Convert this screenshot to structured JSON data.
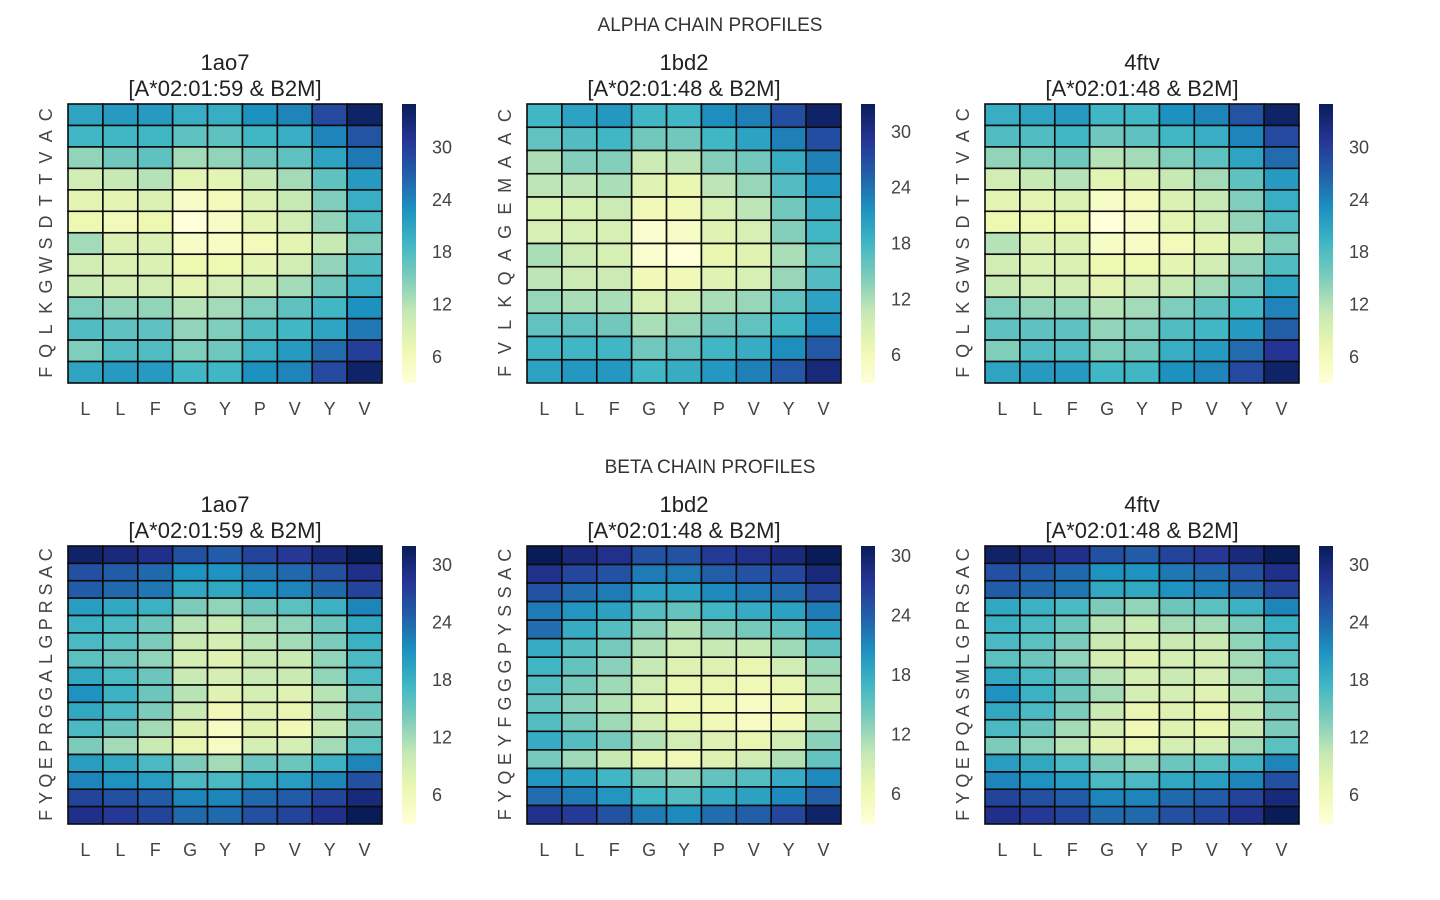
{
  "figure": {
    "rows": [
      {
        "title": "ALPHA CHAIN PROFILES"
      },
      {
        "title": "BETA CHAIN PROFILES"
      }
    ]
  },
  "colormap": [
    "#ffffd9",
    "#edf8b1",
    "#c7e9b4",
    "#7fcdbb",
    "#41b6c4",
    "#1d91c0",
    "#225ea8",
    "#253494",
    "#081d58"
  ],
  "chart_data": [
    {
      "type": "heatmap",
      "row": 0,
      "col": 0,
      "title": "1ao7",
      "subtitle": "[A*02:01:59 & B2M]",
      "x_labels": [
        "L",
        "L",
        "F",
        "G",
        "Y",
        "P",
        "V",
        "Y",
        "V"
      ],
      "y_labels": [
        "F",
        "Q",
        "L",
        "K",
        "G",
        "W",
        "S",
        "D",
        "T",
        "T",
        "V",
        "A",
        "C"
      ],
      "colorbar_ticks": [
        6,
        12,
        18,
        24,
        30
      ],
      "vmin": 3,
      "vmax": 35,
      "values": [
        [
          21,
          22,
          22,
          20,
          20,
          23,
          24,
          29,
          34
        ],
        [
          19,
          19,
          19,
          17,
          17,
          19,
          20,
          24,
          28
        ],
        [
          14,
          16,
          17,
          13,
          14,
          16,
          17,
          21,
          25
        ],
        [
          10,
          11,
          12,
          8,
          8,
          11,
          13,
          17,
          22
        ],
        [
          8,
          8,
          9,
          5,
          6,
          9,
          11,
          15,
          20
        ],
        [
          7,
          6,
          7,
          3,
          5,
          8,
          10,
          14,
          18
        ],
        [
          13,
          9,
          9,
          5,
          5,
          6,
          8,
          11,
          15
        ],
        [
          10,
          9,
          9,
          7,
          7,
          8,
          10,
          14,
          18
        ],
        [
          11,
          10,
          10,
          8,
          10,
          11,
          13,
          16,
          20
        ],
        [
          15,
          14,
          14,
          12,
          13,
          15,
          17,
          19,
          23
        ],
        [
          18,
          17,
          17,
          14,
          15,
          18,
          19,
          21,
          25
        ],
        [
          15,
          18,
          18,
          15,
          16,
          20,
          22,
          26,
          30
        ],
        [
          21,
          22,
          22,
          19,
          19,
          23,
          24,
          29,
          34
        ]
      ]
    },
    {
      "type": "heatmap",
      "row": 0,
      "col": 1,
      "title": "1bd2",
      "subtitle": "[A*02:01:48 & B2M]",
      "x_labels": [
        "L",
        "L",
        "F",
        "G",
        "Y",
        "P",
        "V",
        "Y",
        "V"
      ],
      "y_labels": [
        "F",
        "V",
        "L",
        "K",
        "Q",
        "A",
        "G",
        "E",
        "M",
        "A",
        "A",
        "C"
      ],
      "colorbar_ticks": [
        6,
        12,
        18,
        24,
        30
      ],
      "vmin": 3,
      "vmax": 33,
      "values": [
        [
          18,
          20,
          21,
          18,
          18,
          22,
          23,
          27,
          32
        ],
        [
          16,
          17,
          18,
          15,
          15,
          18,
          20,
          23,
          27
        ],
        [
          12,
          14,
          14,
          10,
          11,
          14,
          15,
          19,
          23
        ],
        [
          11,
          11,
          12,
          8,
          7,
          11,
          13,
          17,
          21
        ],
        [
          9,
          9,
          10,
          6,
          6,
          9,
          11,
          15,
          19
        ],
        [
          9,
          9,
          9,
          4,
          5,
          8,
          9,
          14,
          18
        ],
        [
          12,
          10,
          9,
          4,
          3,
          7,
          8,
          12,
          16
        ],
        [
          11,
          10,
          10,
          6,
          6,
          8,
          9,
          13,
          17
        ],
        [
          13,
          12,
          12,
          9,
          10,
          12,
          13,
          16,
          20
        ],
        [
          16,
          16,
          15,
          12,
          13,
          15,
          16,
          18,
          22
        ],
        [
          18,
          18,
          18,
          15,
          16,
          18,
          19,
          22,
          26
        ],
        [
          20,
          21,
          21,
          18,
          19,
          21,
          23,
          26,
          31
        ]
      ]
    },
    {
      "type": "heatmap",
      "row": 0,
      "col": 2,
      "title": "4ftv",
      "subtitle": "[A*02:01:48 & B2M]",
      "x_labels": [
        "L",
        "L",
        "F",
        "G",
        "Y",
        "P",
        "V",
        "Y",
        "V"
      ],
      "y_labels": [
        "F",
        "Q",
        "L",
        "K",
        "G",
        "W",
        "S",
        "D",
        "T",
        "T",
        "V",
        "A",
        "C"
      ],
      "colorbar_ticks": [
        6,
        12,
        18,
        24,
        30
      ],
      "vmin": 3,
      "vmax": 35,
      "values": [
        [
          20,
          21,
          22,
          19,
          19,
          23,
          24,
          28,
          34
        ],
        [
          18,
          18,
          19,
          16,
          17,
          19,
          20,
          24,
          29
        ],
        [
          14,
          15,
          16,
          12,
          13,
          15,
          17,
          21,
          26
        ],
        [
          10,
          11,
          12,
          8,
          9,
          11,
          13,
          17,
          22
        ],
        [
          8,
          8,
          9,
          5,
          6,
          9,
          11,
          15,
          20
        ],
        [
          7,
          7,
          7,
          3,
          5,
          8,
          10,
          14,
          18
        ],
        [
          12,
          9,
          9,
          5,
          5,
          6,
          8,
          11,
          15
        ],
        [
          10,
          9,
          9,
          7,
          7,
          8,
          10,
          14,
          18
        ],
        [
          11,
          10,
          10,
          8,
          10,
          11,
          13,
          16,
          21
        ],
        [
          15,
          14,
          14,
          12,
          13,
          15,
          17,
          19,
          24
        ],
        [
          17,
          17,
          17,
          14,
          15,
          18,
          19,
          22,
          27
        ],
        [
          15,
          18,
          18,
          15,
          16,
          20,
          22,
          26,
          31
        ],
        [
          21,
          22,
          22,
          19,
          19,
          23,
          24,
          29,
          34
        ]
      ]
    },
    {
      "type": "heatmap",
      "row": 1,
      "col": 0,
      "title": "1ao7",
      "subtitle": "[A*02:01:59 & B2M]",
      "x_labels": [
        "L",
        "L",
        "F",
        "G",
        "Y",
        "P",
        "V",
        "Y",
        "V"
      ],
      "y_labels": [
        "F",
        "Y",
        "Q",
        "E",
        "P",
        "R",
        "G",
        "G",
        "A",
        "L",
        "G",
        "P",
        "R",
        "S",
        "A",
        "C"
      ],
      "colorbar_ticks": [
        6,
        12,
        18,
        24,
        30
      ],
      "vmin": 3,
      "vmax": 32,
      "values": [
        [
          31,
          30,
          29,
          26,
          25,
          27,
          28,
          30,
          32
        ],
        [
          26,
          25,
          24,
          21,
          21,
          23,
          24,
          26,
          29
        ],
        [
          25,
          24,
          23,
          19,
          19,
          21,
          22,
          24,
          27
        ],
        [
          20,
          19,
          18,
          14,
          13,
          15,
          16,
          18,
          22
        ],
        [
          18,
          17,
          15,
          11,
          10,
          12,
          13,
          15,
          19
        ],
        [
          17,
          16,
          14,
          10,
          9,
          11,
          12,
          14,
          18
        ],
        [
          16,
          15,
          13,
          9,
          8,
          10,
          10,
          13,
          17
        ],
        [
          19,
          17,
          15,
          10,
          9,
          10,
          10,
          13,
          17
        ],
        [
          21,
          18,
          15,
          11,
          8,
          9,
          8,
          11,
          15
        ],
        [
          19,
          17,
          14,
          10,
          6,
          8,
          7,
          11,
          15
        ],
        [
          17,
          15,
          12,
          8,
          5,
          8,
          6,
          10,
          14
        ],
        [
          14,
          12,
          10,
          7,
          5,
          9,
          9,
          12,
          16
        ],
        [
          20,
          19,
          17,
          14,
          12,
          15,
          15,
          18,
          22
        ],
        [
          22,
          21,
          20,
          17,
          17,
          19,
          20,
          22,
          26
        ],
        [
          27,
          26,
          25,
          22,
          22,
          24,
          25,
          27,
          30
        ],
        [
          29,
          28,
          27,
          24,
          24,
          26,
          27,
          29,
          32
        ]
      ]
    },
    {
      "type": "heatmap",
      "row": 1,
      "col": 1,
      "title": "1bd2",
      "subtitle": "[A*02:01:48 & B2M]",
      "x_labels": [
        "L",
        "L",
        "F",
        "G",
        "Y",
        "P",
        "V",
        "Y",
        "V"
      ],
      "y_labels": [
        "F",
        "Y",
        "Q",
        "E",
        "Y",
        "F",
        "G",
        "G",
        "G",
        "P",
        "Y",
        "S",
        "S",
        "A",
        "C"
      ],
      "colorbar_ticks": [
        6,
        12,
        18,
        24,
        30
      ],
      "vmin": 3,
      "vmax": 31,
      "values": [
        [
          31,
          29,
          28,
          25,
          25,
          27,
          28,
          29,
          31
        ],
        [
          28,
          26,
          25,
          22,
          22,
          24,
          25,
          26,
          29
        ],
        [
          25,
          23,
          22,
          19,
          19,
          21,
          22,
          23,
          26
        ],
        [
          22,
          20,
          19,
          16,
          15,
          17,
          18,
          19,
          22
        ],
        [
          23,
          18,
          16,
          13,
          11,
          13,
          14,
          15,
          19
        ],
        [
          18,
          16,
          14,
          11,
          9,
          10,
          10,
          12,
          15
        ],
        [
          17,
          15,
          13,
          10,
          8,
          8,
          7,
          9,
          12
        ],
        [
          16,
          14,
          12,
          9,
          7,
          7,
          6,
          7,
          11
        ],
        [
          15,
          13,
          11,
          8,
          6,
          6,
          5,
          6,
          10
        ],
        [
          16,
          14,
          12,
          9,
          7,
          6,
          5,
          6,
          11
        ],
        [
          18,
          16,
          14,
          11,
          9,
          8,
          7,
          9,
          13
        ],
        [
          14,
          12,
          10,
          7,
          6,
          8,
          9,
          11,
          15
        ],
        [
          20,
          19,
          17,
          14,
          13,
          15,
          16,
          18,
          21
        ],
        [
          23,
          22,
          20,
          17,
          16,
          18,
          19,
          21,
          24
        ],
        [
          28,
          27,
          25,
          22,
          21,
          23,
          24,
          26,
          30
        ]
      ]
    },
    {
      "type": "heatmap",
      "row": 1,
      "col": 2,
      "title": "4ftv",
      "subtitle": "[A*02:01:48 & B2M]",
      "x_labels": [
        "L",
        "L",
        "F",
        "G",
        "Y",
        "P",
        "V",
        "Y",
        "V"
      ],
      "y_labels": [
        "F",
        "Y",
        "Q",
        "E",
        "P",
        "Q",
        "A",
        "S",
        "M",
        "L",
        "G",
        "P",
        "R",
        "S",
        "A",
        "C"
      ],
      "colorbar_ticks": [
        6,
        12,
        18,
        24,
        30
      ],
      "vmin": 3,
      "vmax": 32,
      "values": [
        [
          31,
          30,
          29,
          26,
          25,
          27,
          28,
          30,
          32
        ],
        [
          26,
          25,
          24,
          21,
          21,
          23,
          24,
          26,
          29
        ],
        [
          25,
          24,
          23,
          19,
          19,
          21,
          22,
          24,
          27
        ],
        [
          19,
          18,
          17,
          14,
          13,
          15,
          16,
          18,
          22
        ],
        [
          18,
          17,
          15,
          11,
          10,
          12,
          12,
          14,
          18
        ],
        [
          17,
          16,
          14,
          10,
          9,
          10,
          10,
          13,
          17
        ],
        [
          16,
          15,
          13,
          9,
          8,
          9,
          9,
          12,
          16
        ],
        [
          19,
          17,
          15,
          11,
          9,
          10,
          9,
          12,
          16
        ],
        [
          21,
          18,
          15,
          12,
          9,
          9,
          8,
          11,
          15
        ],
        [
          19,
          17,
          14,
          10,
          7,
          8,
          7,
          10,
          14
        ],
        [
          17,
          15,
          12,
          9,
          6,
          8,
          7,
          10,
          14
        ],
        [
          14,
          13,
          11,
          8,
          7,
          9,
          9,
          12,
          16
        ],
        [
          20,
          19,
          17,
          14,
          13,
          15,
          16,
          18,
          22
        ],
        [
          22,
          21,
          20,
          17,
          17,
          19,
          20,
          22,
          26
        ],
        [
          27,
          26,
          25,
          22,
          22,
          24,
          25,
          27,
          30
        ],
        [
          29,
          28,
          27,
          24,
          24,
          26,
          27,
          29,
          32
        ]
      ]
    }
  ]
}
